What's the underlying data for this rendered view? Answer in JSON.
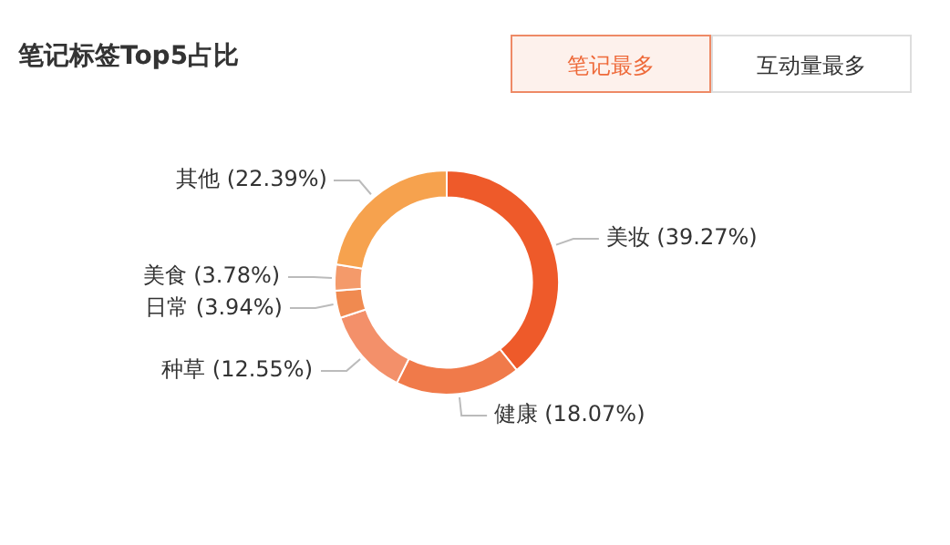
{
  "chart_data": {
    "type": "donut",
    "title": "笔记标签Top5占比",
    "categories": [
      "美妆",
      "健康",
      "种草",
      "日常",
      "美食",
      "其他"
    ],
    "values": [
      39.27,
      18.07,
      12.55,
      3.94,
      3.78,
      22.39
    ],
    "value_labels": [
      "(39.27%)",
      "(18.07%)",
      "(12.55%)",
      "(3.94%)",
      "(3.78%)",
      "(22.39%)"
    ],
    "colors": [
      "#ee5a2a",
      "#f07a4a",
      "#f3906a",
      "#f08a50",
      "#f49a6a",
      "#f6a24e"
    ],
    "annotations": [
      "笔记最多",
      "互动量最多"
    ],
    "legend": false
  }
}
